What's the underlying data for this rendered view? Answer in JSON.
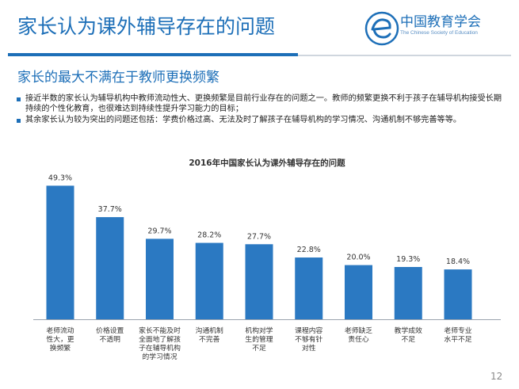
{
  "slide": {
    "title": "家长认为课外辅导存在的问题",
    "subtitle": "家长的最大不满在于教师更换频繁",
    "bullets": [
      "接近半数的家长认为辅导机构中教师流动性大、更换频繁是目前行业存在的问题之一。教师的频繁更换不利于孩子在辅导机构接受长期持续的个性化教育，也很难达到持续性提升学习能力的目标；",
      "其余家长认为较为突出的问题还包括：学费价格过高、无法及时了解孩子在辅导机构的学习情况、沟通机制不够完善等等。"
    ],
    "page_number": "12"
  },
  "logo": {
    "text": "中国教育学会",
    "subtext": "The Chinese Society of Education",
    "icon": "cse-e-logo-icon"
  },
  "colors": {
    "accent": "#1d6fb8",
    "bar": "#2b79c2",
    "rule_grey": "#cfd6de"
  },
  "chart_data": {
    "type": "bar",
    "title": "2016年中国家长认为课外辅导存在的问题",
    "categories": [
      [
        "老师流动",
        "性大，更",
        "换频繁"
      ],
      [
        "价格设置",
        "不透明"
      ],
      [
        "家长不能及时",
        "全面地了解孩",
        "子在辅导机构",
        "的学习情况"
      ],
      [
        "沟通机制",
        "不完善"
      ],
      [
        "机构对学",
        "生的管理",
        "不足"
      ],
      [
        "课程内容",
        "不够有针",
        "对性"
      ],
      [
        "老师缺乏",
        "责任心"
      ],
      [
        "教学成效",
        "不足"
      ],
      [
        "老师专业",
        "水平不足"
      ]
    ],
    "values": [
      49.3,
      37.7,
      29.7,
      28.2,
      27.7,
      22.8,
      20.0,
      19.3,
      18.4
    ],
    "value_labels": [
      "49.3%",
      "37.7%",
      "29.7%",
      "28.2%",
      "27.7%",
      "22.8%",
      "20.0%",
      "19.3%",
      "18.4%"
    ],
    "xlabel": "",
    "ylabel": "",
    "ylim": [
      0,
      50
    ],
    "grid": false,
    "legend": "none"
  }
}
